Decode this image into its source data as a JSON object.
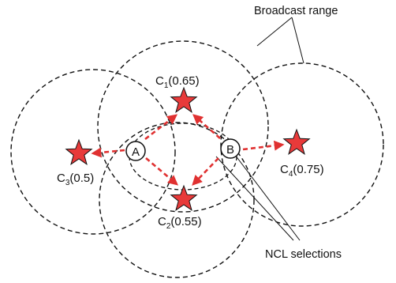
{
  "labels": {
    "broadcast_range": "Broadcast range",
    "ncl_selections": "NCL selections"
  },
  "nodes": {
    "a": {
      "label": "A"
    },
    "b": {
      "label": "B"
    }
  },
  "candidates": [
    {
      "id": "c1",
      "main": "C",
      "sub": "1",
      "value": "(0.65)"
    },
    {
      "id": "c2",
      "main": "C",
      "sub": "2",
      "value": "(0.55)"
    },
    {
      "id": "c3",
      "main": "C",
      "sub": "3",
      "value": "(0.5)"
    },
    {
      "id": "c4",
      "main": "C",
      "sub": "4",
      "value": "(0.75)"
    }
  ],
  "colors": {
    "star": "#e83a3a",
    "arrow": "#e03131",
    "line": "#111111"
  }
}
